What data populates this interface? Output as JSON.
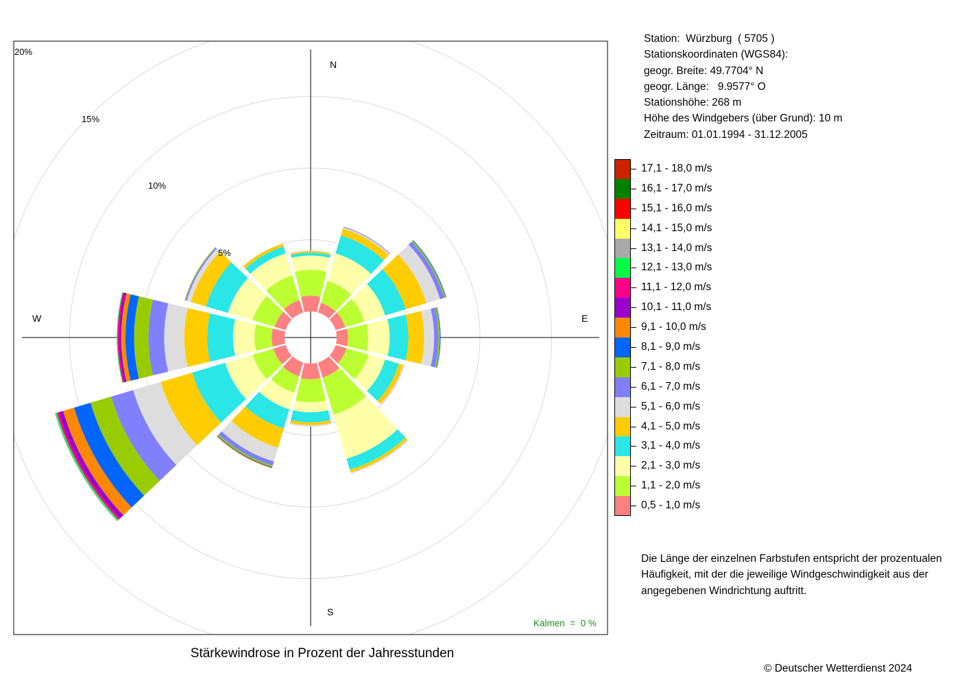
{
  "station_info": {
    "line1": "Station:  Würzburg  ( 5705 )",
    "line2": "Stationskoordinaten (WGS84):",
    "line3": "geogr. Breite: 49.7704° N",
    "line4": "geogr. Länge:   9.9577° O",
    "line5": "Stationshöhe: 268 m",
    "line6": "Höhe des Windgebers (über Grund): 10 m",
    "line7": "Zeitraum: 01.01.1994 - 31.12.2005"
  },
  "legend_items": [
    {
      "label": "17,1 - 18,0 m/s",
      "color": "#cc2200"
    },
    {
      "label": "16,1 - 17,0 m/s",
      "color": "#008000"
    },
    {
      "label": "15,1 - 16,0 m/s",
      "color": "#ff0000"
    },
    {
      "label": "14,1 - 15,0 m/s",
      "color": "#ffff66"
    },
    {
      "label": "13,1 - 14,0 m/s",
      "color": "#aaaaaa"
    },
    {
      "label": "12,1 - 13,0 m/s",
      "color": "#00ff44"
    },
    {
      "label": "11,1 - 12,0 m/s",
      "color": "#ff0088"
    },
    {
      "label": "10,1 - 11,0 m/s",
      "color": "#9900cc"
    },
    {
      "label": "9,1 - 10,0 m/s",
      "color": "#ff8800"
    },
    {
      "label": "8,1 - 9,0 m/s",
      "color": "#0066ff"
    },
    {
      "label": "7,1 - 8,0 m/s",
      "color": "#99cc00"
    },
    {
      "label": "6,1 - 7,0 m/s",
      "color": "#8080ff"
    },
    {
      "label": "5,1 - 6,0 m/s",
      "color": "#dddddd"
    },
    {
      "label": "4,1 - 5,0 m/s",
      "color": "#ffcc00"
    },
    {
      "label": "3,1 - 4,0 m/s",
      "color": "#2ae6e6"
    },
    {
      "label": "2,1 - 3,0 m/s",
      "color": "#ffffaa"
    },
    {
      "label": "1,1 - 2,0 m/s",
      "color": "#bbff33"
    },
    {
      "label": "0,5 - 1,0 m/s",
      "color": "#ff8080"
    }
  ],
  "note": "Die Länge der einzelnen Farbstufen entspricht der prozentualen Häufigkeit, mit der die jeweilige Windgeschwindigkeit aus der angegebenen Windrichtung auftritt.",
  "caption": "Stärkewindrose in Prozent der Jahresstunden",
  "copyright": "© Deutscher Wetterdienst  2024",
  "chart_data": {
    "type": "wind_rose",
    "title": "Stärkewindrose in Prozent der Jahresstunden",
    "directions_deg": [
      0,
      30,
      60,
      90,
      120,
      150,
      180,
      210,
      240,
      270,
      300,
      330
    ],
    "compass_labels": {
      "north": "N",
      "east": "E",
      "south": "S",
      "west": "W"
    },
    "ring_labels": [
      "5%",
      "10%",
      "15%",
      "20%"
    ],
    "ring_values": [
      5,
      10,
      15,
      20
    ],
    "calm_label": "Kalmen  =  0 %",
    "speed_classes": [
      "0,5 - 1,0 m/s",
      "1,1 - 2,0 m/s",
      "2,1 - 3,0 m/s",
      "3,1 - 4,0 m/s",
      "4,1 - 5,0 m/s",
      "5,1 - 6,0 m/s",
      "6,1 - 7,0 m/s",
      "7,1 - 8,0 m/s",
      "8,1 - 9,0 m/s",
      "9,1 - 10,0 m/s",
      "10,1 - 11,0 m/s",
      "11,1 - 12,0 m/s",
      "12,1 - 13,0 m/s",
      "13,1 - 14,0 m/s",
      "14,1 - 15,0 m/s",
      "15,1 - 16,0 m/s",
      "16,1 - 17,0 m/s",
      "17,1 - 18,0 m/s"
    ],
    "colors": [
      "#ff8080",
      "#bbff33",
      "#ffffaa",
      "#2ae6e6",
      "#ffcc00",
      "#dddddd",
      "#8080ff",
      "#99cc00",
      "#0066ff",
      "#ff8800",
      "#9900cc",
      "#ff0088",
      "#00ff44",
      "#aaaaaa",
      "#ffff66",
      "#ff0000",
      "#008000",
      "#cc2200"
    ],
    "series": [
      {
        "direction_deg": 0,
        "values": [
          1.1,
          1.8,
          1.0,
          0.2,
          0.1,
          0.05
        ]
      },
      {
        "direction_deg": 30,
        "values": [
          0.7,
          1.6,
          2.0,
          1.3,
          0.5,
          0.1,
          0.05
        ]
      },
      {
        "direction_deg": 60,
        "values": [
          0.7,
          1.4,
          1.5,
          1.5,
          1.5,
          1.0,
          0.3,
          0.1,
          0.05
        ]
      },
      {
        "direction_deg": 90,
        "values": [
          0.8,
          1.4,
          1.5,
          1.3,
          1.1,
          0.7,
          0.3,
          0.1,
          0.05
        ]
      },
      {
        "direction_deg": 120,
        "values": [
          0.8,
          1.6,
          1.2,
          1.0,
          0.3,
          0.1
        ]
      },
      {
        "direction_deg": 150,
        "values": [
          1.1,
          2.7,
          3.2,
          0.8,
          0.2,
          0.1
        ]
      },
      {
        "direction_deg": 180,
        "values": [
          1.1,
          1.6,
          0.7,
          0.7,
          0.2,
          0.1
        ]
      },
      {
        "direction_deg": 210,
        "values": [
          1.0,
          1.2,
          1.2,
          1.4,
          1.4,
          1.0,
          0.3,
          0.1,
          0.05,
          0.05
        ]
      },
      {
        "direction_deg": 240,
        "values": [
          0.9,
          1.5,
          2.0,
          2.4,
          2.3,
          2.0,
          1.6,
          1.5,
          1.2,
          0.8,
          0.3,
          0.15,
          0.1,
          0.05
        ]
      },
      {
        "direction_deg": 270,
        "values": [
          0.9,
          1.2,
          1.5,
          1.8,
          1.6,
          1.4,
          1.1,
          1.0,
          0.6,
          0.3,
          0.15,
          0.1,
          0.05
        ]
      },
      {
        "direction_deg": 300,
        "values": [
          0.8,
          1.6,
          1.8,
          1.6,
          1.1,
          0.3,
          0.1,
          0.05
        ]
      },
      {
        "direction_deg": 330,
        "values": [
          0.9,
          1.8,
          1.6,
          0.5,
          0.2
        ]
      }
    ]
  }
}
